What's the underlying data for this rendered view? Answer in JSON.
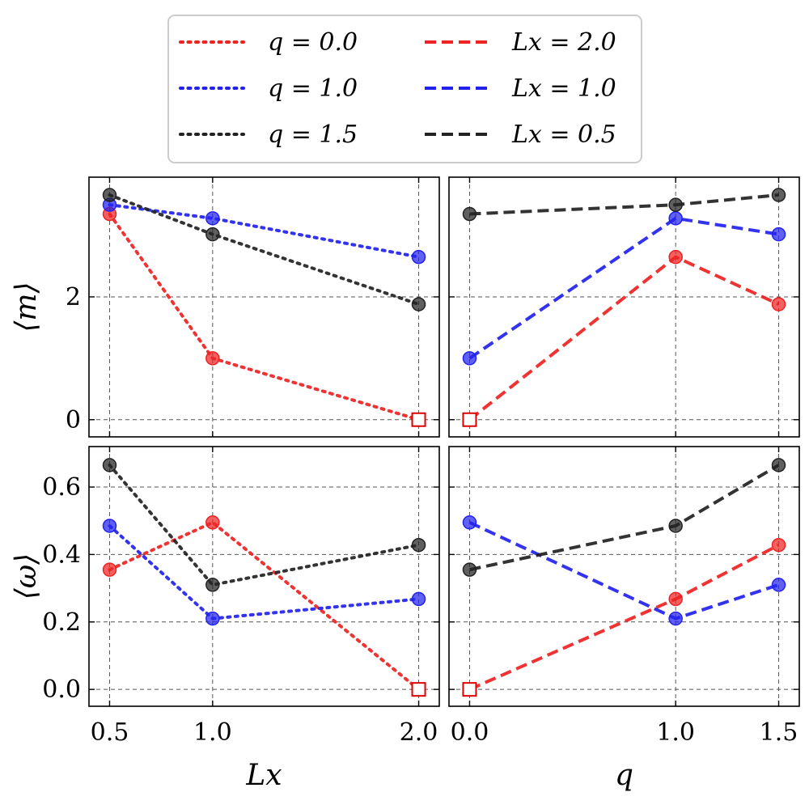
{
  "colors": {
    "q_0.0": "#ee2222",
    "q_1.0": "#2222ee",
    "q_1.5": "#222222",
    "Lx_2.0": "#ee2222",
    "Lx_1.0": "#2222ee",
    "Lx_0.5": "#222222",
    "grid": "#555555",
    "frame": "#000000"
  },
  "legend": {
    "position": "top-center",
    "entries": [
      {
        "label": "q = 0.0",
        "style": "dotted",
        "color_key": "q_0.0"
      },
      {
        "label": "q = 1.0",
        "style": "dotted",
        "color_key": "q_1.0"
      },
      {
        "label": "q = 1.5",
        "style": "dotted",
        "color_key": "q_1.5"
      },
      {
        "label": "Lx = 2.0",
        "style": "dashed",
        "color_key": "Lx_2.0"
      },
      {
        "label": "Lx = 1.0",
        "style": "dashed",
        "color_key": "Lx_1.0"
      },
      {
        "label": "Lx = 0.5",
        "style": "dashed",
        "color_key": "Lx_0.5"
      }
    ]
  },
  "chart_data": [
    {
      "id": "m_vs_Lx",
      "type": "line",
      "xlabel": "",
      "ylabel": "⟨m⟩",
      "xlim": [
        0.4,
        2.1
      ],
      "ylim": [
        -0.28,
        3.95
      ],
      "xticks": [
        0.5,
        1.0,
        2.0
      ],
      "xtick_labels": [],
      "yticks": [
        0,
        2
      ],
      "ytick_labels": [
        "0",
        "2"
      ],
      "grid": true,
      "series": [
        {
          "name": "q = 0.0",
          "color_key": "q_0.0",
          "style": "dotted",
          "x": [
            0.5,
            1.0,
            2.0
          ],
          "y": [
            3.35,
            1.0,
            0.0
          ],
          "open_square_last": true
        },
        {
          "name": "q = 1.0",
          "color_key": "q_1.0",
          "style": "dotted",
          "x": [
            0.5,
            1.0,
            2.0
          ],
          "y": [
            3.5,
            3.28,
            2.65
          ],
          "open_square_last": false
        },
        {
          "name": "q = 1.5",
          "color_key": "q_1.5",
          "style": "dotted",
          "x": [
            0.5,
            1.0,
            2.0
          ],
          "y": [
            3.66,
            3.02,
            1.88
          ],
          "open_square_last": false
        }
      ]
    },
    {
      "id": "m_vs_q",
      "type": "line",
      "xlabel": "",
      "ylabel": "",
      "xlim": [
        -0.1,
        1.6
      ],
      "ylim": [
        -0.28,
        3.95
      ],
      "xticks": [
        0.0,
        1.0,
        1.5
      ],
      "xtick_labels": [],
      "yticks": [
        0,
        2
      ],
      "ytick_labels": [],
      "grid": true,
      "series": [
        {
          "name": "Lx = 2.0",
          "color_key": "Lx_2.0",
          "style": "dashed",
          "x": [
            0.0,
            1.0,
            1.5
          ],
          "y": [
            0.0,
            2.65,
            1.88
          ],
          "open_square_first": true
        },
        {
          "name": "Lx = 1.0",
          "color_key": "Lx_1.0",
          "style": "dashed",
          "x": [
            0.0,
            1.0,
            1.5
          ],
          "y": [
            1.0,
            3.28,
            3.02
          ],
          "open_square_first": false
        },
        {
          "name": "Lx = 0.5",
          "color_key": "Lx_0.5",
          "style": "dashed",
          "x": [
            0.0,
            1.0,
            1.5
          ],
          "y": [
            3.35,
            3.5,
            3.66
          ],
          "open_square_first": false
        }
      ]
    },
    {
      "id": "w_vs_Lx",
      "type": "line",
      "xlabel": "Lx",
      "ylabel": "⟨ω⟩",
      "xlim": [
        0.4,
        2.1
      ],
      "ylim": [
        -0.05,
        0.72
      ],
      "xticks": [
        0.5,
        1.0,
        2.0
      ],
      "xtick_labels": [
        "0.5",
        "1.0",
        "2.0"
      ],
      "yticks": [
        0.0,
        0.2,
        0.4,
        0.6
      ],
      "ytick_labels": [
        "0.0",
        "0.2",
        "0.4",
        "0.6"
      ],
      "grid": true,
      "series": [
        {
          "name": "q = 0.0",
          "color_key": "q_0.0",
          "style": "dotted",
          "x": [
            0.5,
            1.0,
            2.0
          ],
          "y": [
            0.355,
            0.495,
            0.0
          ],
          "open_square_last": true
        },
        {
          "name": "q = 1.0",
          "color_key": "q_1.0",
          "style": "dotted",
          "x": [
            0.5,
            1.0,
            2.0
          ],
          "y": [
            0.485,
            0.21,
            0.268
          ],
          "open_square_last": false
        },
        {
          "name": "q = 1.5",
          "color_key": "q_1.5",
          "style": "dotted",
          "x": [
            0.5,
            1.0,
            2.0
          ],
          "y": [
            0.665,
            0.31,
            0.428
          ],
          "open_square_last": false
        }
      ]
    },
    {
      "id": "w_vs_q",
      "type": "line",
      "xlabel": "q",
      "ylabel": "",
      "xlim": [
        -0.1,
        1.6
      ],
      "ylim": [
        -0.05,
        0.72
      ],
      "xticks": [
        0.0,
        1.0,
        1.5
      ],
      "xtick_labels": [
        "0.0",
        "1.0",
        "1.5"
      ],
      "yticks": [
        0.0,
        0.2,
        0.4,
        0.6
      ],
      "ytick_labels": [],
      "grid": true,
      "series": [
        {
          "name": "Lx = 2.0",
          "color_key": "Lx_2.0",
          "style": "dashed",
          "x": [
            0.0,
            1.0,
            1.5
          ],
          "y": [
            0.0,
            0.268,
            0.428
          ],
          "open_square_first": true
        },
        {
          "name": "Lx = 1.0",
          "color_key": "Lx_1.0",
          "style": "dashed",
          "x": [
            0.0,
            1.0,
            1.5
          ],
          "y": [
            0.495,
            0.21,
            0.31
          ],
          "open_square_first": false
        },
        {
          "name": "Lx = 0.5",
          "color_key": "Lx_0.5",
          "style": "dashed",
          "x": [
            0.0,
            1.0,
            1.5
          ],
          "y": [
            0.355,
            0.485,
            0.665
          ],
          "open_square_first": false
        }
      ]
    }
  ]
}
